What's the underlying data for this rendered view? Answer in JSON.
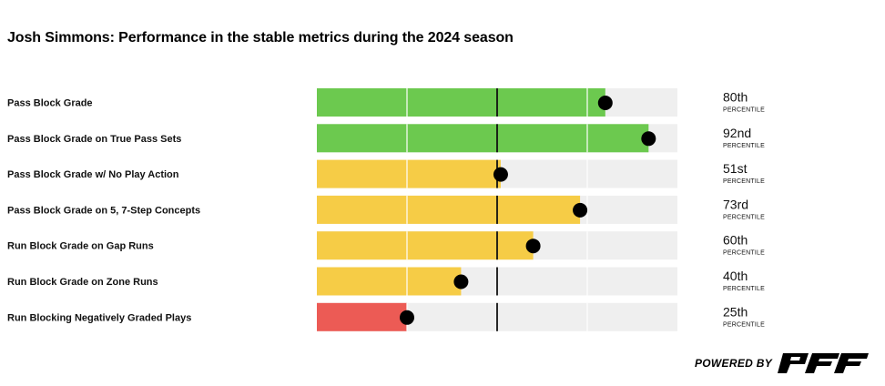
{
  "title": "Josh Simmons: Performance in the stable metrics during the 2024 season",
  "chart_data": {
    "type": "bar",
    "orientation": "horizontal",
    "categories": [
      "Pass Block Grade",
      "Pass Block Grade on True Pass Sets",
      "Pass Block Grade w/ No Play Action",
      "Pass Block Grade on 5, 7-Step Concepts",
      "Run Block Grade on Gap Runs",
      "Run Block Grade on Zone Runs",
      "Run Blocking Negatively Graded Plays"
    ],
    "values": [
      80,
      92,
      51,
      73,
      60,
      40,
      25
    ],
    "percentile_labels": [
      "80th",
      "92nd",
      "51st",
      "73rd",
      "60th",
      "40th",
      "25th"
    ],
    "unit_label": "PERCENTILE",
    "xlim": [
      0,
      100
    ],
    "reference_line": 50,
    "grid": true,
    "colors": {
      "high": "#6cc94f",
      "mid": "#f6cc46",
      "low": "#ec5b55",
      "track": "#efefef",
      "marker": "#000000"
    }
  },
  "branding": {
    "powered_by": "POWERED BY",
    "logo_name": "pff-logo"
  }
}
